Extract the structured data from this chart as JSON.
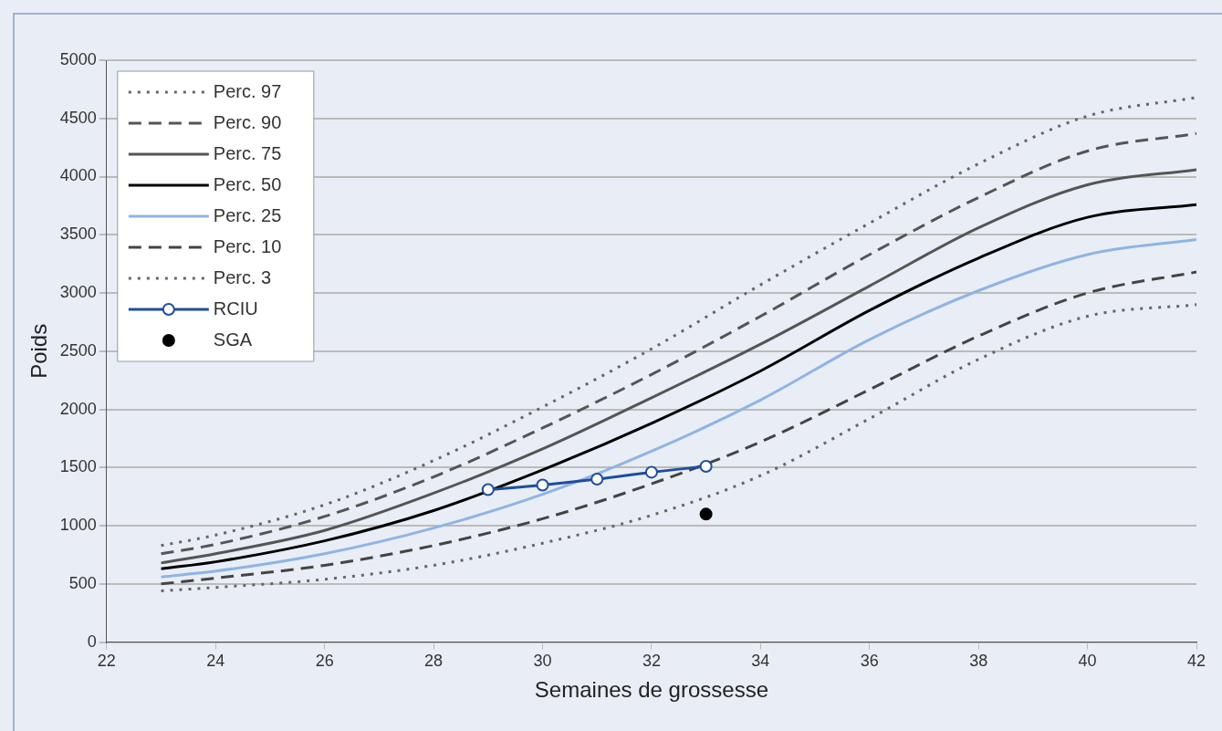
{
  "chart_data": {
    "type": "line",
    "xlabel": "Semaines de grossesse",
    "ylabel": "Poids",
    "xlim": [
      22,
      42
    ],
    "xticks": [
      22,
      24,
      26,
      28,
      30,
      32,
      34,
      36,
      38,
      40,
      42
    ],
    "ylim": [
      0,
      5000
    ],
    "yticks": [
      0,
      500,
      1000,
      1500,
      2000,
      2500,
      3000,
      3500,
      4000,
      4500,
      5000
    ],
    "grid": "y",
    "legend": "top left",
    "marker": "none",
    "series": [
      {
        "name": "Perc. 97",
        "color": "#666666",
        "line_style": "dotted",
        "x": [
          23,
          24,
          26,
          28,
          30,
          32,
          34,
          36,
          38,
          40,
          42
        ],
        "values": [
          830,
          920,
          1180,
          1560,
          2020,
          2520,
          3070,
          3600,
          4110,
          4520,
          4680
        ]
      },
      {
        "name": "Perc. 90",
        "color": "#555555",
        "line_style": "dashed",
        "x": [
          23,
          24,
          26,
          28,
          30,
          32,
          34,
          36,
          38,
          40,
          42
        ],
        "values": [
          760,
          840,
          1080,
          1420,
          1840,
          2300,
          2800,
          3330,
          3820,
          4220,
          4370
        ]
      },
      {
        "name": "Perc. 75",
        "color": "#555555",
        "line_style": "solid",
        "x": [
          23,
          24,
          26,
          28,
          30,
          32,
          34,
          36,
          38,
          40,
          42
        ],
        "values": [
          680,
          760,
          960,
          1280,
          1660,
          2100,
          2560,
          3060,
          3560,
          3930,
          4060
        ]
      },
      {
        "name": "Perc. 50",
        "color": "#000000",
        "line_style": "solid",
        "x": [
          23,
          24,
          26,
          28,
          30,
          32,
          34,
          36,
          38,
          40,
          42
        ],
        "values": [
          630,
          690,
          870,
          1130,
          1480,
          1880,
          2330,
          2850,
          3300,
          3650,
          3760
        ]
      },
      {
        "name": "Perc. 25",
        "color": "#8fb4e3",
        "line_style": "solid",
        "x": [
          23,
          24,
          26,
          28,
          30,
          32,
          34,
          36,
          38,
          40,
          42
        ],
        "values": [
          560,
          610,
          760,
          980,
          1270,
          1640,
          2080,
          2600,
          3020,
          3330,
          3460
        ]
      },
      {
        "name": "Perc. 10",
        "color": "#444444",
        "line_style": "dashed",
        "x": [
          23,
          24,
          26,
          28,
          30,
          32,
          34,
          36,
          38,
          40,
          42
        ],
        "values": [
          500,
          550,
          660,
          830,
          1060,
          1360,
          1720,
          2170,
          2630,
          3000,
          3180
        ]
      },
      {
        "name": "Perc. 3",
        "color": "#666666",
        "line_style": "dotted",
        "x": [
          23,
          24,
          26,
          28,
          30,
          32,
          34,
          36,
          38,
          40,
          42
        ],
        "values": [
          440,
          470,
          540,
          660,
          850,
          1090,
          1430,
          1920,
          2430,
          2800,
          2900
        ]
      },
      {
        "name": "RCIU",
        "color": "#1f4e9c",
        "line_style": "solid",
        "marker": "circle",
        "x": [
          29,
          30,
          31,
          32,
          33
        ],
        "values": [
          1310,
          1350,
          1400,
          1460,
          1510
        ]
      },
      {
        "name": "SGA",
        "type": "scatter",
        "color": "#000000",
        "marker": "circle",
        "x": [
          33
        ],
        "values": [
          1100
        ]
      }
    ]
  }
}
